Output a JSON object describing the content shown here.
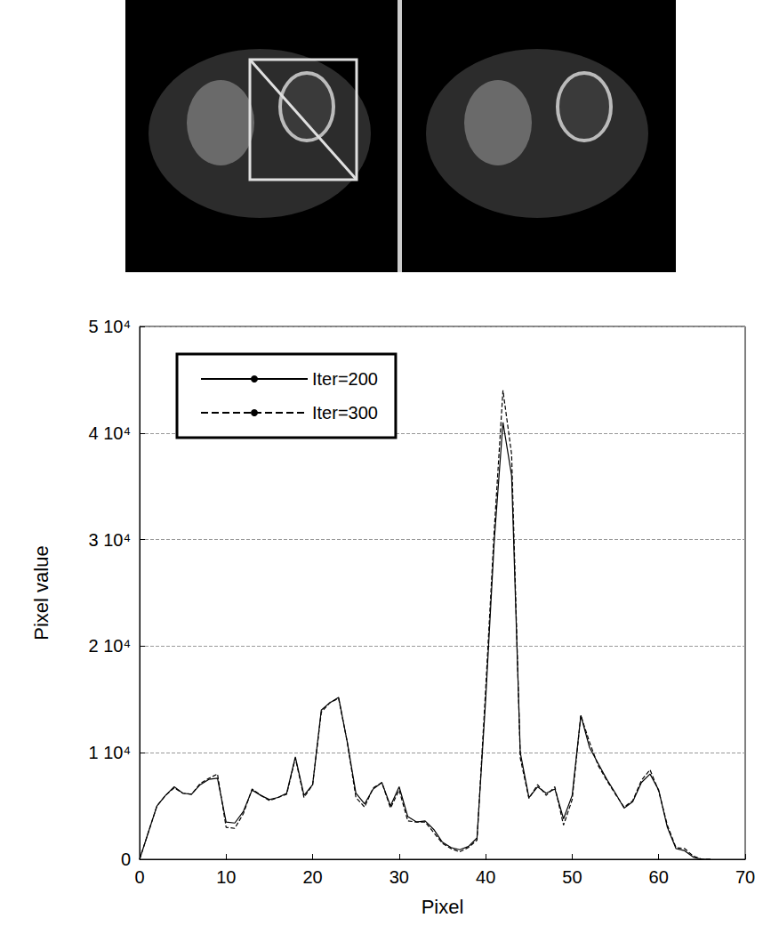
{
  "chart_data": {
    "type": "line",
    "xlabel": "Pixel",
    "ylabel": "Pixel value",
    "x": [
      0,
      1,
      2,
      3,
      4,
      5,
      6,
      7,
      8,
      9,
      10,
      11,
      12,
      13,
      14,
      15,
      16,
      17,
      18,
      19,
      20,
      21,
      22,
      23,
      24,
      25,
      26,
      27,
      28,
      29,
      30,
      31,
      32,
      33,
      34,
      35,
      36,
      37,
      38,
      39,
      40,
      41,
      42,
      43,
      44,
      45,
      46,
      47,
      48,
      49,
      50,
      51,
      52,
      53,
      54,
      55,
      56,
      57,
      58,
      59,
      60,
      61,
      62,
      63,
      64,
      65,
      66
    ],
    "series": [
      {
        "name": "Iter=200",
        "color": "#000000",
        "line_style": "solid",
        "values": [
          0,
          2500,
          5000,
          6000,
          6800,
          6200,
          6100,
          7000,
          7500,
          7600,
          3500,
          3400,
          4500,
          6500,
          6000,
          5600,
          5800,
          6200,
          9600,
          6000,
          7000,
          14000,
          14700,
          15200,
          11000,
          6200,
          5200,
          6600,
          7200,
          5000,
          6800,
          4000,
          3500,
          3600,
          2800,
          1600,
          1100,
          900,
          1200,
          2000,
          15000,
          30000,
          41000,
          36000,
          10000,
          5800,
          6800,
          6200,
          6600,
          3800,
          6000,
          13500,
          10500,
          9000,
          7500,
          6200,
          4800,
          5400,
          7200,
          8000,
          6500,
          3000,
          1000,
          800,
          200,
          0,
          0
        ]
      },
      {
        "name": "Iter=300",
        "color": "#000000",
        "line_style": "dashed",
        "values": [
          0,
          2500,
          5000,
          6000,
          6700,
          6200,
          6100,
          7100,
          7600,
          8000,
          3000,
          2900,
          4300,
          6600,
          6000,
          5500,
          5800,
          6100,
          9500,
          5800,
          7000,
          13800,
          14700,
          15100,
          11000,
          5800,
          4900,
          6700,
          7200,
          4800,
          6500,
          3600,
          3500,
          3500,
          2500,
          1500,
          1000,
          700,
          1100,
          1800,
          16000,
          31000,
          44000,
          38000,
          9500,
          5700,
          7000,
          6000,
          6800,
          3200,
          5600,
          13500,
          11000,
          8800,
          7400,
          6100,
          4900,
          5500,
          7400,
          8400,
          6400,
          3200,
          1100,
          1000,
          300,
          0,
          0
        ]
      }
    ],
    "xlim": [
      0,
      70
    ],
    "ylim": [
      0,
      50000
    ],
    "xticks": [
      0,
      10,
      20,
      30,
      40,
      50,
      60,
      70
    ],
    "yticks": [
      0,
      {
        "value": 10000,
        "label": "1 10⁴"
      },
      {
        "value": 20000,
        "label": "2 10⁴"
      },
      {
        "value": 30000,
        "label": "3 10⁴"
      },
      {
        "value": 40000,
        "label": "4 10⁴"
      },
      {
        "value": 50000,
        "label": "5 10⁴"
      }
    ],
    "grid": true,
    "legend": "upper left"
  }
}
